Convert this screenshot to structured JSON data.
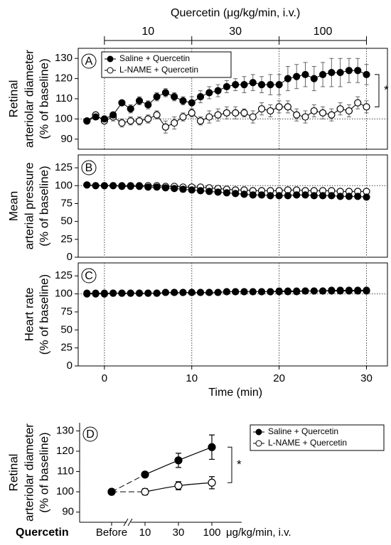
{
  "chart_data": [
    {
      "type": "line",
      "panel": "A",
      "ylabel": [
        "Retinal",
        "arteriolar diameter",
        "(% of baseline)"
      ],
      "annotation": {
        "title": "Quercetin (μg/kg/min, i.v.)",
        "doses": [
          "10",
          "30",
          "100"
        ],
        "dose_edges": [
          0,
          10,
          20,
          30
        ]
      },
      "significance": "*",
      "reference": 100,
      "xlim": [
        -3,
        32.4
      ],
      "ylim": [
        85,
        135
      ],
      "yticks": [
        90,
        100,
        110,
        120,
        130
      ],
      "x": [
        -2,
        -1,
        0,
        1,
        2,
        3,
        4,
        5,
        6,
        7,
        8,
        9,
        10,
        11,
        12,
        13,
        14,
        15,
        16,
        17,
        18,
        19,
        20,
        21,
        22,
        23,
        24,
        25,
        26,
        27,
        28,
        29,
        30
      ],
      "series": [
        {
          "name": "Saline + Quercetin",
          "color": "#000000",
          "values": [
            99,
            101,
            100,
            102,
            108,
            105,
            109,
            107,
            111,
            113,
            111,
            109,
            108,
            111,
            113,
            114,
            116,
            117,
            117,
            118,
            117,
            117,
            117,
            120,
            121,
            122,
            120,
            122,
            123,
            123,
            124,
            124,
            122
          ],
          "errors": [
            1,
            1,
            1,
            1,
            1,
            2,
            2,
            2,
            2,
            2,
            2,
            2,
            3,
            3,
            3,
            3,
            3,
            3,
            4,
            4,
            4,
            5,
            5,
            6,
            6,
            6,
            6,
            6,
            7,
            7,
            6,
            6,
            5
          ]
        },
        {
          "name": "L-NAME + Quercetin",
          "color": "#ffffff",
          "values": [
            99,
            102,
            99,
            101,
            98,
            99,
            99,
            100,
            102,
            96,
            98,
            101,
            103,
            99,
            101,
            102,
            103,
            103,
            103,
            101,
            105,
            104,
            106,
            106,
            102,
            101,
            104,
            103,
            102,
            105,
            104,
            108,
            106
          ],
          "errors": [
            1,
            1,
            1,
            2,
            2,
            2,
            2,
            2,
            2,
            3,
            3,
            2,
            2,
            2,
            3,
            3,
            3,
            3,
            2,
            3,
            3,
            3,
            3,
            3,
            3,
            3,
            3,
            3,
            3,
            3,
            3,
            3,
            3
          ]
        }
      ]
    },
    {
      "type": "line",
      "panel": "B",
      "ylabel": [
        "Mean",
        "arterial pressure",
        "(% of baseline)"
      ],
      "reference": 100,
      "xlim": [
        -3,
        32.4
      ],
      "ylim": [
        0,
        143
      ],
      "yticks": [
        0,
        25,
        50,
        75,
        100,
        125
      ],
      "x": [
        -2,
        -1,
        0,
        1,
        2,
        3,
        4,
        5,
        6,
        7,
        8,
        9,
        10,
        11,
        12,
        13,
        14,
        15,
        16,
        17,
        18,
        19,
        20,
        21,
        22,
        23,
        24,
        25,
        26,
        27,
        28,
        29,
        30
      ],
      "series": [
        {
          "name": "Saline + Quercetin",
          "color": "#000000",
          "values": [
            101,
            100,
            100,
            100,
            99,
            99,
            99,
            98,
            98,
            97,
            96,
            95,
            94,
            93,
            92,
            91,
            90,
            89,
            88,
            87,
            87,
            86,
            86,
            86,
            87,
            87,
            86,
            86,
            86,
            85,
            85,
            85,
            84
          ]
        },
        {
          "name": "L-NAME + Quercetin",
          "color": "#ffffff",
          "values": [
            101,
            100,
            100,
            100,
            100,
            100,
            100,
            100,
            100,
            99,
            99,
            98,
            98,
            98,
            97,
            96,
            95,
            94,
            94,
            93,
            93,
            93,
            93,
            94,
            94,
            93,
            93,
            93,
            93,
            92,
            92,
            92,
            92
          ]
        }
      ]
    },
    {
      "type": "line",
      "panel": "C",
      "ylabel": [
        "Heart rate",
        "(% of baseline)"
      ],
      "reference": 100,
      "xlabel": "Time (min)",
      "xlim": [
        -3,
        32.4
      ],
      "ylim": [
        0,
        143
      ],
      "yticks": [
        0,
        25,
        50,
        75,
        100,
        125
      ],
      "xticks": [
        0,
        10,
        20,
        30
      ],
      "x": [
        -2,
        -1,
        0,
        1,
        2,
        3,
        4,
        5,
        6,
        7,
        8,
        9,
        10,
        11,
        12,
        13,
        14,
        15,
        16,
        17,
        18,
        19,
        20,
        21,
        22,
        23,
        24,
        25,
        26,
        27,
        28,
        29,
        30
      ],
      "series": [
        {
          "name": "Saline + Quercetin",
          "color": "#000000",
          "values": [
            100,
            100,
            100,
            101,
            101,
            101,
            101,
            101,
            101,
            102,
            102,
            102,
            102,
            102,
            102,
            102,
            103,
            103,
            103,
            103,
            103,
            103,
            103,
            103,
            103,
            104,
            104,
            104,
            104,
            104,
            104,
            104,
            104
          ]
        },
        {
          "name": "L-NAME + Quercetin",
          "color": "#ffffff",
          "values": [
            101,
            101,
            101,
            101,
            101,
            101,
            101,
            101,
            101,
            102,
            102,
            102,
            102,
            102,
            102,
            102,
            103,
            103,
            103,
            103,
            103,
            103,
            104,
            104,
            104,
            104,
            104,
            104,
            105,
            105,
            105,
            105,
            105
          ]
        }
      ]
    },
    {
      "type": "line",
      "panel": "D",
      "ylabel": [
        "Retinal",
        "arteriolar diameter",
        "(% of baseline)"
      ],
      "group_label": "Quercetin",
      "xlabel": "μg/kg/min, i.v.",
      "significance": "*",
      "categories": [
        "Before",
        "10",
        "30",
        "100"
      ],
      "ylim": [
        85,
        134
      ],
      "yticks": [
        90,
        100,
        110,
        120,
        130
      ],
      "series": [
        {
          "name": "Saline + Quercetin",
          "color": "#000000",
          "values": [
            100,
            108.5,
            115.5,
            122
          ],
          "errors": [
            0,
            1,
            3.5,
            6
          ]
        },
        {
          "name": "L-NAME + Quercetin",
          "color": "#ffffff",
          "values": [
            100,
            100,
            103,
            104.5
          ],
          "errors": [
            0,
            1.5,
            2,
            3
          ]
        }
      ]
    }
  ]
}
